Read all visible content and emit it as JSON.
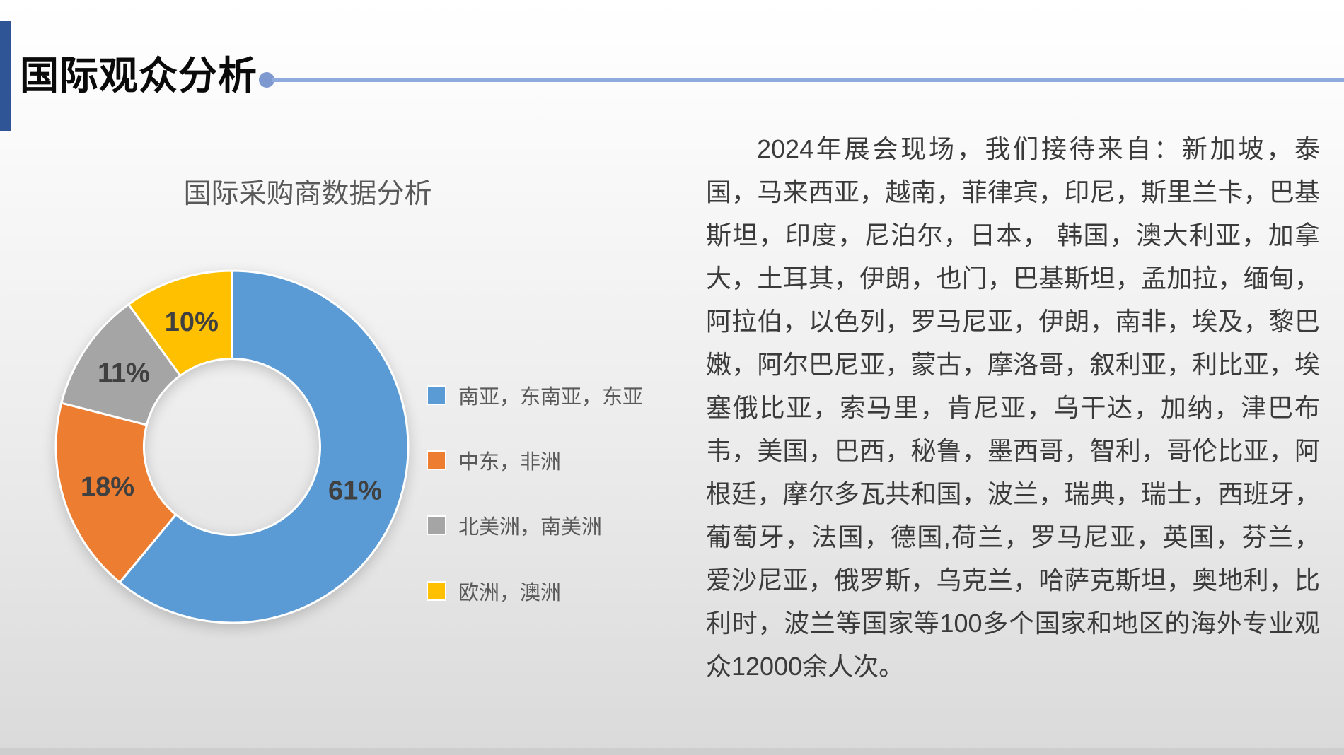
{
  "slide": {
    "title": "国际观众分析",
    "accent_color": "#2F5597",
    "divider_color": "#8FAADC",
    "divider_dot_color": "#7E99CF"
  },
  "chart_data": {
    "type": "pie",
    "subtype": "donut",
    "title": "国际采购商数据分析",
    "title_color": "#595959",
    "categories": [
      "南亚，东南亚，东亚",
      "中东，非洲",
      "北美洲，南美洲",
      "欧洲，澳洲"
    ],
    "values": [
      61,
      18,
      11,
      10
    ],
    "data_labels": [
      "61%",
      "18%",
      "11%",
      "10%"
    ],
    "colors": [
      "#5B9BD5",
      "#ED7D31",
      "#A5A5A5",
      "#FFC000"
    ],
    "label_color": "#404040",
    "legend_text_color": "#595959",
    "legend_position": "right",
    "start_angle_deg": 0,
    "direction": "clockwise",
    "hole_ratio": 0.5
  },
  "paragraph": {
    "text": "2024年展会现场，我们接待来自：新加坡，泰国，马来西亚，越南，菲律宾，印尼，斯里兰卡，巴基斯坦，印度，尼泊尔，日本， 韩国，澳大利亚，加拿大，土耳其，伊朗，也门，巴基斯坦，孟加拉，缅甸，阿拉伯，以色列，罗马尼亚，伊朗，南非，埃及，黎巴嫩，阿尔巴尼亚，蒙古，摩洛哥，叙利亚，利比亚，埃塞俄比亚，索马里，肯尼亚，乌干达，加纳，津巴布韦，美国，巴西，秘鲁，墨西哥，智利，哥伦比亚，阿根廷，摩尔多瓦共和国，波兰，瑞典，瑞士，西班牙，葡萄牙，法国，德国,荷兰，罗马尼亚，英国，芬兰，爱沙尼亚，俄罗斯，乌克兰，哈萨克斯坦，奥地利，比利时，波兰等国家等100多个国家和地区的海外专业观众12000余人次。"
  }
}
